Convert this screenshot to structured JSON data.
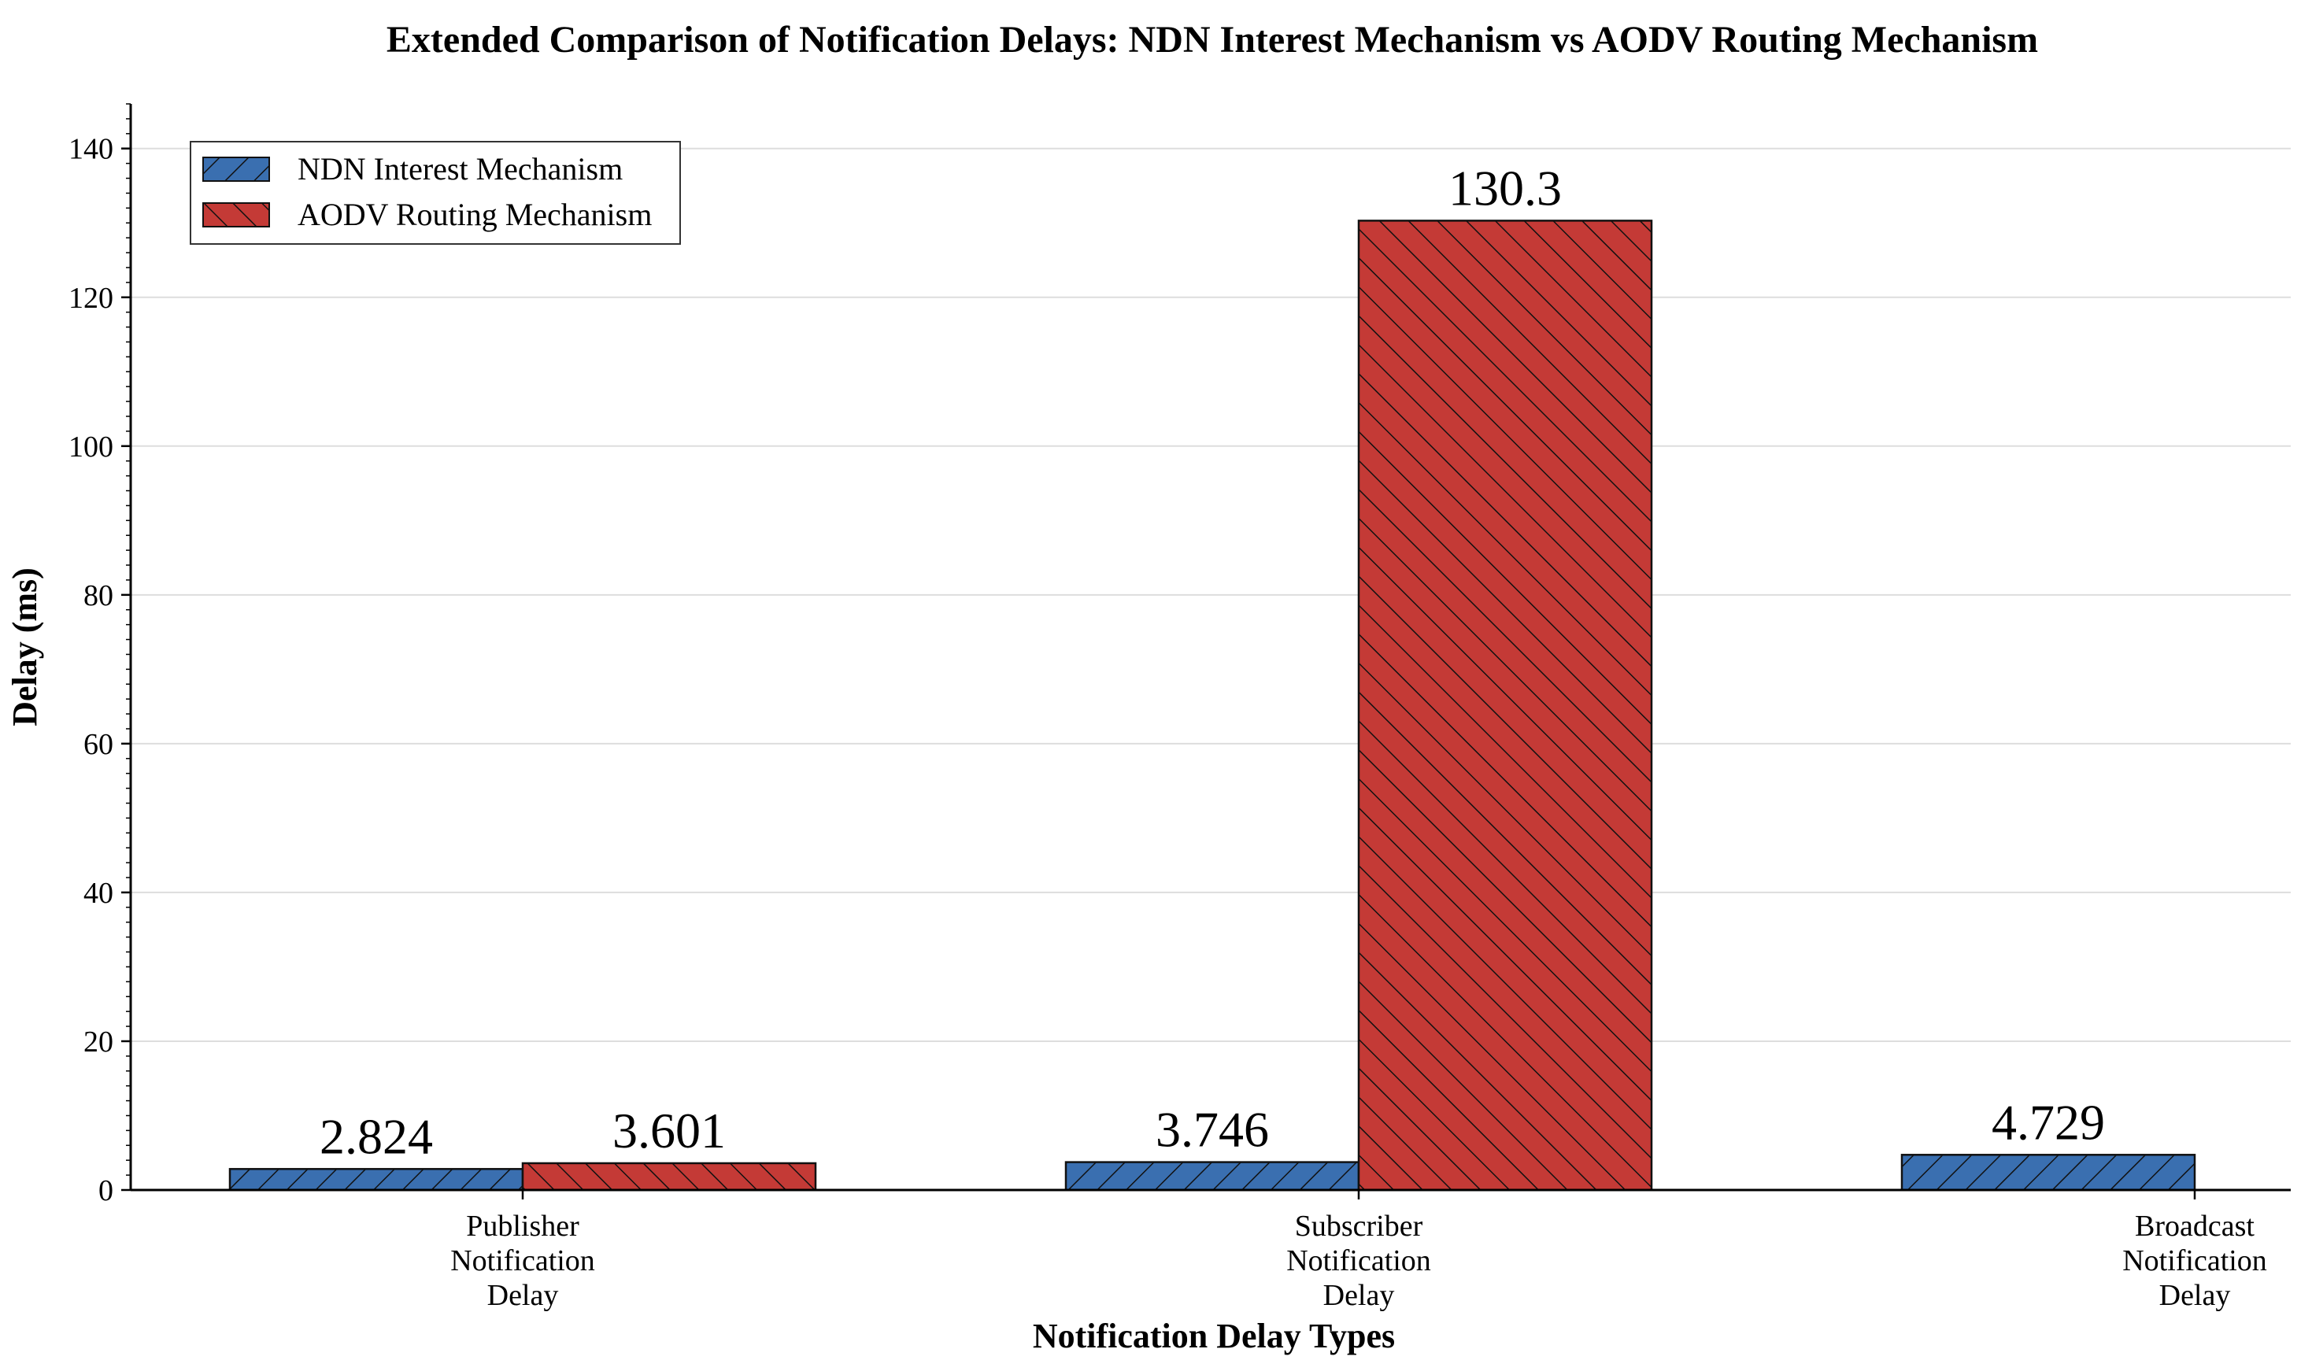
{
  "chart_data": {
    "type": "bar",
    "title": "Extended Comparison of Notification Delays: NDN Interest Mechanism vs AODV Routing Mechanism",
    "xlabel": "Notification Delay Types",
    "ylabel": "Delay (ms)",
    "ylim": [
      0,
      146
    ],
    "yticks": [
      0,
      20,
      40,
      60,
      80,
      100,
      120,
      140
    ],
    "grid": true,
    "legend_position": "top-left",
    "categories": [
      [
        "Publisher",
        "Notification",
        "Delay"
      ],
      [
        "Subscriber",
        "Notification",
        "Delay"
      ],
      [
        "Broadcast",
        "Notification",
        "Delay"
      ]
    ],
    "series": [
      {
        "name": "NDN Interest Mechanism",
        "color": "#3a6fb0",
        "hatch": "forward-diagonal",
        "values": [
          2.824,
          3.746,
          4.729
        ],
        "labels": [
          "2.824",
          "3.746",
          "4.729"
        ]
      },
      {
        "name": "AODV Routing Mechanism",
        "color": "#c43a36",
        "hatch": "backward-diagonal",
        "values": [
          3.601,
          130.3,
          null
        ],
        "labels": [
          "3.601",
          "130.3",
          null
        ]
      }
    ]
  }
}
